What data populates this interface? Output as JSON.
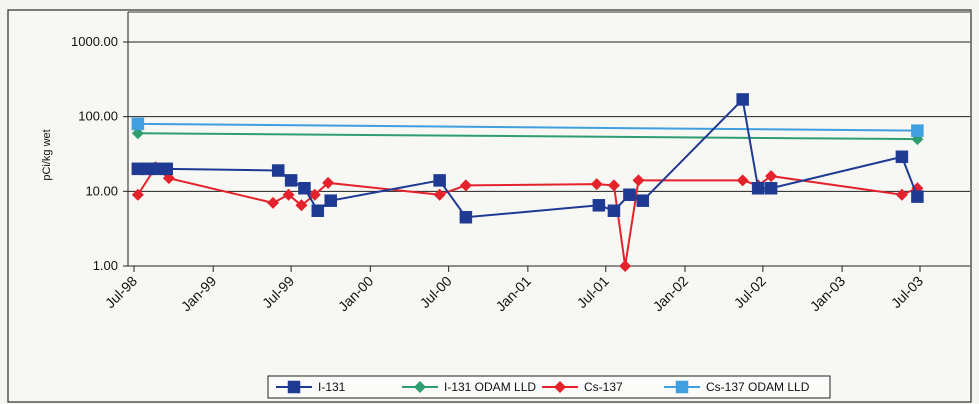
{
  "chart_data": {
    "type": "line",
    "title": "",
    "xlabel": "",
    "ylabel": "pCi/kg wet",
    "y_scale": "log",
    "ylim": [
      1,
      1000
    ],
    "y_ticks": [
      1,
      10,
      100,
      1000
    ],
    "y_tick_labels": [
      "1.00",
      "10.00",
      "100.00",
      "1000.00"
    ],
    "xlim": [
      "1998-07-01",
      "2003-07-01"
    ],
    "x_ticks": [
      "1998-07-01",
      "1999-01-01",
      "1999-07-01",
      "2000-01-01",
      "2000-07-01",
      "2001-01-01",
      "2001-07-01",
      "2002-01-01",
      "2002-07-01",
      "2003-01-01",
      "2003-07-01"
    ],
    "x_tick_labels": [
      "Jul-98",
      "Jan-99",
      "Jul-99",
      "Jan-00",
      "Jul-00",
      "Jan-01",
      "Jul-01",
      "Jan-02",
      "Jul-02",
      "Jan-03",
      "Jul-03"
    ],
    "grid": "horizontal",
    "legend_position": "bottom",
    "series": [
      {
        "name": "I-131",
        "color": "#1f3a93",
        "marker": "square",
        "points": [
          {
            "x": "1998-07-10",
            "y": 20
          },
          {
            "x": "1998-08-01",
            "y": 20
          },
          {
            "x": "1998-08-20",
            "y": 20
          },
          {
            "x": "1998-09-15",
            "y": 20
          },
          {
            "x": "1999-06-01",
            "y": 19
          },
          {
            "x": "1999-07-01",
            "y": 14
          },
          {
            "x": "1999-08-01",
            "y": 11
          },
          {
            "x": "1999-09-01",
            "y": 5.5
          },
          {
            "x": "1999-10-01",
            "y": 7.5
          },
          {
            "x": "2000-06-10",
            "y": 14
          },
          {
            "x": "2000-08-10",
            "y": 4.5
          },
          {
            "x": "2001-06-15",
            "y": 6.5
          },
          {
            "x": "2001-07-20",
            "y": 5.5
          },
          {
            "x": "2001-08-25",
            "y": 9
          },
          {
            "x": "2001-09-25",
            "y": 7.5
          },
          {
            "x": "2002-05-15",
            "y": 170
          },
          {
            "x": "2002-06-20",
            "y": 11
          },
          {
            "x": "2002-07-20",
            "y": 11
          },
          {
            "x": "2003-05-20",
            "y": 29
          },
          {
            "x": "2003-06-25",
            "y": 8.5
          }
        ]
      },
      {
        "name": "I-131 ODAM LLD",
        "color": "#2e9e6e",
        "marker": "diamond",
        "points": [
          {
            "x": "1998-07-10",
            "y": 60
          },
          {
            "x": "2003-06-25",
            "y": 50
          }
        ]
      },
      {
        "name": "Cs-137",
        "color": "#e3222b",
        "marker": "diamond",
        "points": [
          {
            "x": "1998-07-10",
            "y": 9
          },
          {
            "x": "1998-08-20",
            "y": 21
          },
          {
            "x": "1998-09-20",
            "y": 15
          },
          {
            "x": "1999-05-20",
            "y": 7
          },
          {
            "x": "1999-06-25",
            "y": 9
          },
          {
            "x": "1999-07-25",
            "y": 6.5
          },
          {
            "x": "1999-08-25",
            "y": 9
          },
          {
            "x": "1999-09-25",
            "y": 13
          },
          {
            "x": "2000-06-10",
            "y": 9
          },
          {
            "x": "2000-08-10",
            "y": 12
          },
          {
            "x": "2001-06-10",
            "y": 12.5
          },
          {
            "x": "2001-07-20",
            "y": 12
          },
          {
            "x": "2001-08-15",
            "y": 1
          },
          {
            "x": "2001-09-15",
            "y": 14
          },
          {
            "x": "2002-05-15",
            "y": 14
          },
          {
            "x": "2002-06-20",
            "y": 12
          },
          {
            "x": "2002-07-20",
            "y": 16
          },
          {
            "x": "2003-05-20",
            "y": 9
          },
          {
            "x": "2003-06-25",
            "y": 11
          }
        ]
      },
      {
        "name": "Cs-137 ODAM LLD",
        "color": "#3f9fe0",
        "marker": "square",
        "points": [
          {
            "x": "1998-07-10",
            "y": 80
          },
          {
            "x": "2003-06-25",
            "y": 65
          }
        ]
      }
    ]
  }
}
